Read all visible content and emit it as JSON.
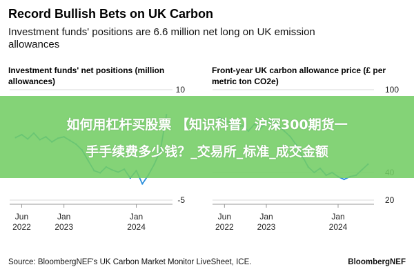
{
  "title": "Record Bullish Bets on UK Carbon",
  "subtitle": "Investment funds' positions are 6.6 million net long on UK emission allowances",
  "source": "Source: BloombergNEF's UK Carbon Market Monitor LiveSheet, ICE.",
  "brand": "BloombergNEF",
  "overlay": {
    "line1": "如何用杠杆买股票 【知识科普】沪深300期货一",
    "line2": "手手续费多少钱？_交易所_标准_成交金额"
  },
  "colors": {
    "series": "#2c8fdc",
    "grid": "#d9d9d9",
    "overlay": "#73cd64"
  },
  "chart_data": [
    {
      "type": "line",
      "title": "Investment funds' net positions (million allowances)",
      "ylim": [
        -5,
        10
      ],
      "yticks": [
        10,
        -5
      ],
      "xticks": [
        {
          "x": "2022-06",
          "label": [
            "Jun",
            "2022"
          ]
        },
        {
          "x": "2023-01",
          "label": [
            "Jan",
            "2023"
          ]
        },
        {
          "x": "2024-01",
          "label": [
            "Jan",
            "2024"
          ]
        }
      ],
      "series": [
        {
          "x": [
            "2022-05",
            "2022-06",
            "2022-07",
            "2022-08",
            "2022-09",
            "2022-10",
            "2022-11",
            "2022-12",
            "2023-01",
            "2023-02",
            "2023-03",
            "2023-04",
            "2023-05",
            "2023-06",
            "2023-07",
            "2023-08",
            "2023-09",
            "2023-10",
            "2023-11",
            "2023-12",
            "2024-01",
            "2024-02",
            "2024-03",
            "2024-04",
            "2024-05",
            "2024-06"
          ],
          "values": [
            3.5,
            3.9,
            3.3,
            4.1,
            3.2,
            3.6,
            2.9,
            3.4,
            3.6,
            3.1,
            2.6,
            1.8,
            0.4,
            -1.0,
            -1.3,
            -0.5,
            -0.9,
            -1.2,
            -0.8,
            -2.0,
            -1.0,
            -2.8,
            -1.6,
            -0.1,
            1.8,
            6.6
          ]
        }
      ]
    },
    {
      "type": "line",
      "title": "Front-year UK carbon allowance price (£ per metric ton CO2e)",
      "ylim": [
        20,
        100
      ],
      "yticks": [
        100,
        40,
        20
      ],
      "xticks": [
        {
          "x": "2022-06",
          "label": [
            "Jun",
            "2022"
          ]
        },
        {
          "x": "2023-01",
          "label": [
            "Jan",
            "2023"
          ]
        },
        {
          "x": "2024-01",
          "label": [
            "Jan",
            "2024"
          ]
        }
      ],
      "series": [
        {
          "x": [
            "2022-05",
            "2022-06",
            "2022-07",
            "2022-08",
            "2022-09",
            "2022-10",
            "2022-11",
            "2022-12",
            "2023-01",
            "2023-02",
            "2023-03",
            "2023-04",
            "2023-05",
            "2023-06",
            "2023-07",
            "2023-08",
            "2023-09",
            "2023-10",
            "2023-11",
            "2023-12",
            "2024-01",
            "2024-02",
            "2024-03",
            "2024-04",
            "2024-05",
            "2024-06"
          ],
          "values": [
            80,
            78,
            76,
            72,
            74,
            70,
            75,
            72,
            76,
            78,
            74,
            70,
            66,
            60,
            52,
            44,
            40,
            43,
            38,
            40,
            37,
            35,
            37,
            38,
            42,
            46
          ]
        }
      ]
    }
  ]
}
